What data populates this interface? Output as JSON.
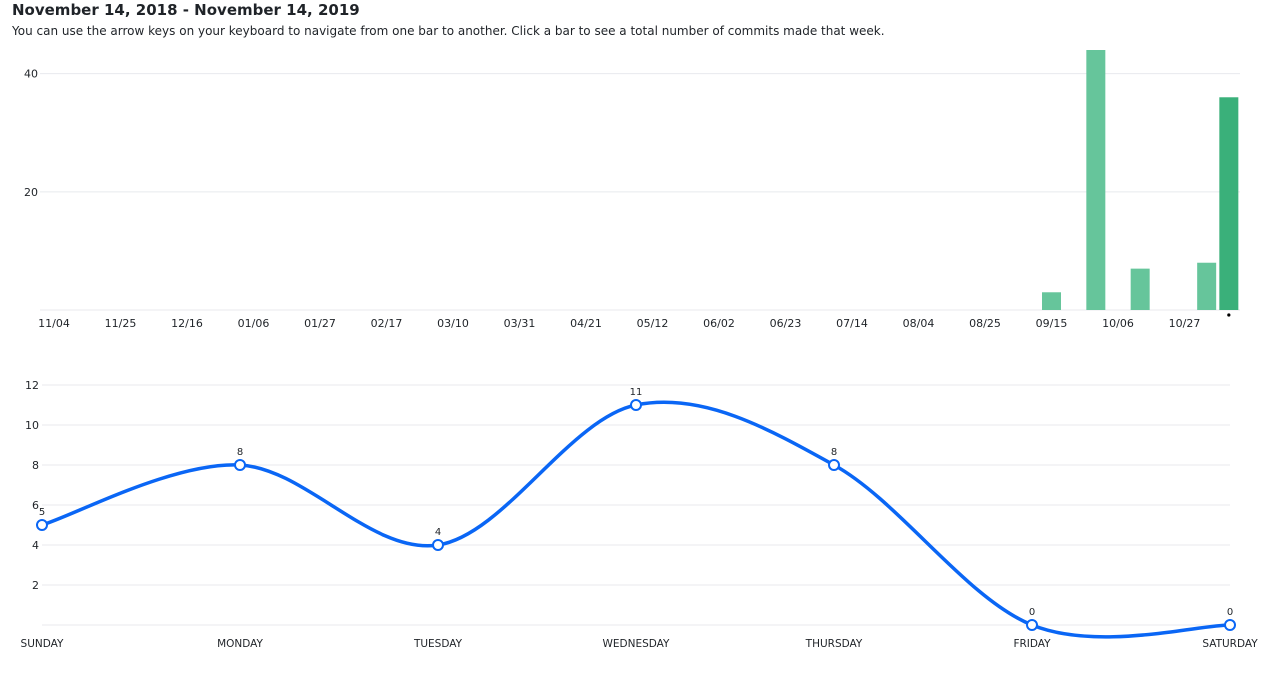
{
  "header": {
    "title": "November 14, 2018 - November 14, 2019",
    "subtitle": "You can use the arrow keys on your keyboard to navigate from one bar to another. Click a bar to see a total number of commits made that week."
  },
  "colors": {
    "bar": "#66c59b",
    "bar_active": "#3ab07a",
    "line": "#0a66f5",
    "grid": "#e8eaee",
    "text": "#1f2328"
  },
  "chart_data": [
    {
      "type": "bar",
      "title": "",
      "xlabel": "",
      "ylabel": "",
      "ylim": [
        0,
        44
      ],
      "y_ticks": [
        20,
        40
      ],
      "grid": true,
      "x_ticks": [
        "11/04",
        "11/25",
        "12/16",
        "01/06",
        "01/27",
        "02/17",
        "03/10",
        "03/31",
        "04/21",
        "05/12",
        "06/02",
        "06/23",
        "07/14",
        "08/04",
        "08/25",
        "09/15",
        "10/06",
        "10/27"
      ],
      "bars": [
        {
          "week_index": 45,
          "value": 3
        },
        {
          "week_index": 47,
          "value": 44
        },
        {
          "week_index": 49,
          "value": 7
        },
        {
          "week_index": 52,
          "value": 8
        },
        {
          "week_index": 53,
          "value": 36,
          "active": true
        }
      ],
      "week_count": 54
    },
    {
      "type": "line",
      "title": "",
      "xlabel": "",
      "ylabel": "",
      "categories": [
        "SUNDAY",
        "MONDAY",
        "TUESDAY",
        "WEDNESDAY",
        "THURSDAY",
        "FRIDAY",
        "SATURDAY"
      ],
      "values": [
        5,
        8,
        4,
        11,
        8,
        0,
        0
      ],
      "ylim": [
        0,
        12
      ],
      "y_ticks": [
        2,
        4,
        6,
        8,
        10,
        12
      ],
      "grid": true,
      "smooth": true
    }
  ]
}
